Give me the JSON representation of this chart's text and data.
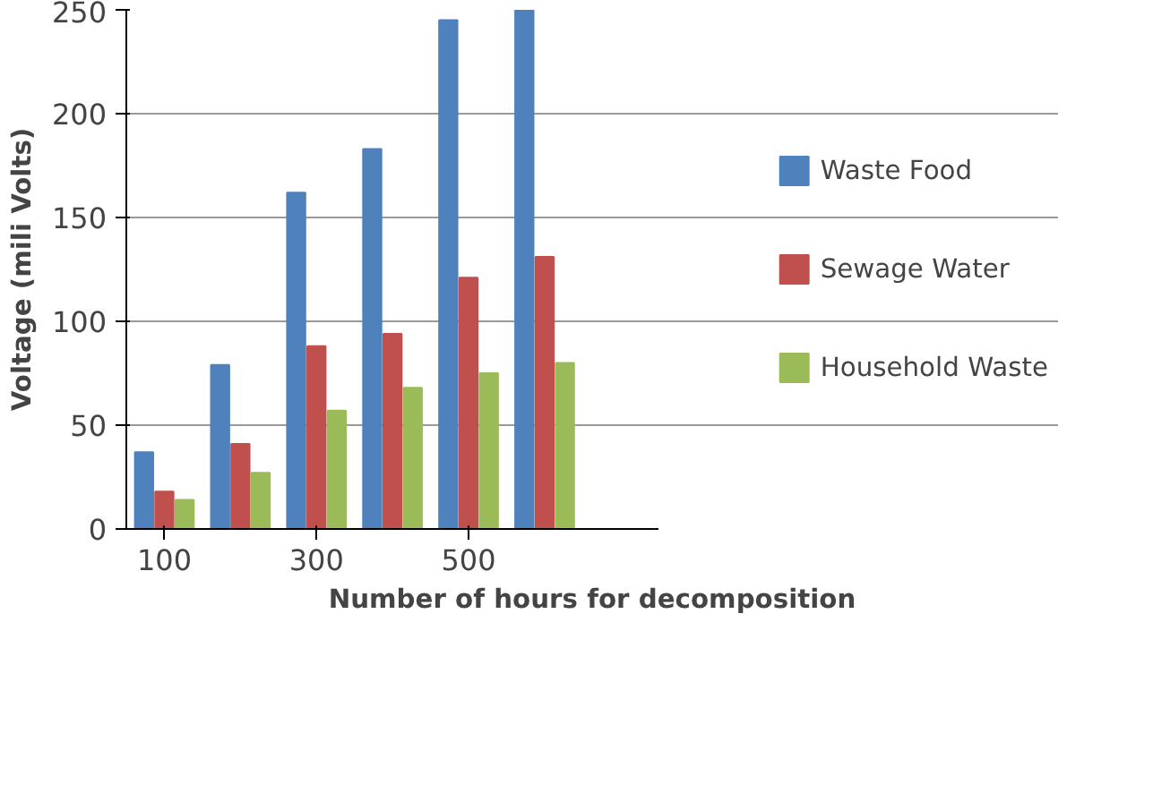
{
  "chart_data": {
    "type": "bar",
    "xlabel": "Number of hours for decomposition",
    "ylabel": "Voltage (mili Volts)",
    "categories": [
      "100",
      null,
      "300",
      null,
      "500",
      null,
      null
    ],
    "series": [
      {
        "name": "Waste Food",
        "color": "#4f81bd",
        "values": [
          37,
          79,
          162,
          183,
          245,
          250,
          null
        ]
      },
      {
        "name": "Sewage Water",
        "color": "#c0504d",
        "values": [
          18,
          41,
          88,
          94,
          121,
          131,
          null
        ]
      },
      {
        "name": "Household Waste",
        "color": "#9bbb59",
        "values": [
          14,
          27,
          57,
          68,
          75,
          80,
          null
        ]
      }
    ],
    "ylim": [
      0,
      250
    ],
    "yticks": [
      0,
      50,
      100,
      150,
      200,
      250
    ],
    "grid": "y",
    "legend": "right"
  }
}
